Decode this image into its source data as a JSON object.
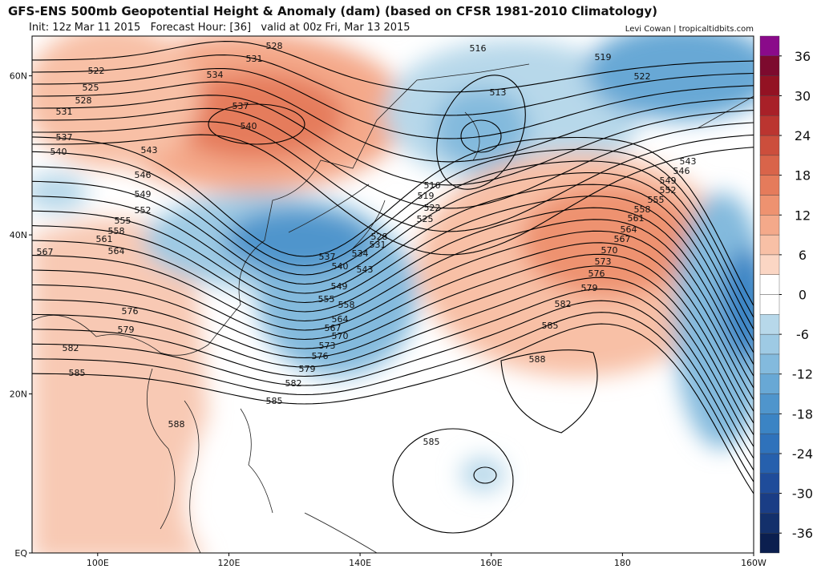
{
  "header": {
    "title": "GFS-ENS 500mb Geopotential Height & Anomaly (dam) (based on CFSR 1981-2010 Climatology)",
    "subtitle": "Init: 12z Mar 11 2015   Forecast Hour: [36]   valid at 00z Fri, Mar 13 2015",
    "credit": "Levi Cowan | tropicaltidbits.com"
  },
  "map": {
    "lon_range": [
      90,
      200
    ],
    "lat_range": [
      0,
      65
    ],
    "lon_ticks": [
      {
        "value": 100,
        "label": "100E"
      },
      {
        "value": 120,
        "label": "120E"
      },
      {
        "value": 140,
        "label": "140E"
      },
      {
        "value": 160,
        "label": "160E"
      },
      {
        "value": 180,
        "label": "180"
      },
      {
        "value": 200,
        "label": "160W"
      }
    ],
    "lat_ticks": [
      {
        "value": 0,
        "label": "EQ"
      },
      {
        "value": 20,
        "label": "20N"
      },
      {
        "value": 40,
        "label": "40N"
      },
      {
        "value": 60,
        "label": "60N"
      }
    ],
    "contour_labels": [
      "522",
      "525",
      "528",
      "531",
      "537",
      "540",
      "543",
      "546",
      "549",
      "552",
      "555",
      "558",
      "561",
      "564",
      "567",
      "576",
      "579",
      "582",
      "585",
      "588",
      "531",
      "528",
      "534",
      "537",
      "540",
      "516",
      "513",
      "519",
      "522",
      "516",
      "519",
      "522",
      "525",
      "528",
      "531",
      "534",
      "537",
      "540",
      "543",
      "549",
      "555",
      "558",
      "564",
      "567",
      "570",
      "573",
      "576",
      "579",
      "582",
      "585",
      "588",
      "585",
      "543",
      "546",
      "549",
      "552",
      "555",
      "558",
      "561",
      "564",
      "567",
      "570",
      "573",
      "576",
      "579",
      "582",
      "585"
    ]
  },
  "colorbar": {
    "lim": [
      -39,
      39
    ],
    "ticks": [
      36,
      30,
      24,
      18,
      12,
      6,
      0,
      -6,
      -12,
      -18,
      -24,
      -30,
      -36
    ],
    "colors": [
      "#0b1f4f",
      "#13306b",
      "#1a3d85",
      "#1f4c9a",
      "#2660ad",
      "#2f72bb",
      "#3b84c4",
      "#4f95cc",
      "#68a8d5",
      "#83badd",
      "#9ecae4",
      "#b7d8ea",
      "#ffffff",
      "#ffffff",
      "#fbd6c4",
      "#f8c0a6",
      "#f4a98a",
      "#ee9270",
      "#e57b5b",
      "#d9644a",
      "#cc4e3c",
      "#bb3530",
      "#a82028",
      "#931223",
      "#7d0a2e",
      "#8a0a8a"
    ]
  }
}
